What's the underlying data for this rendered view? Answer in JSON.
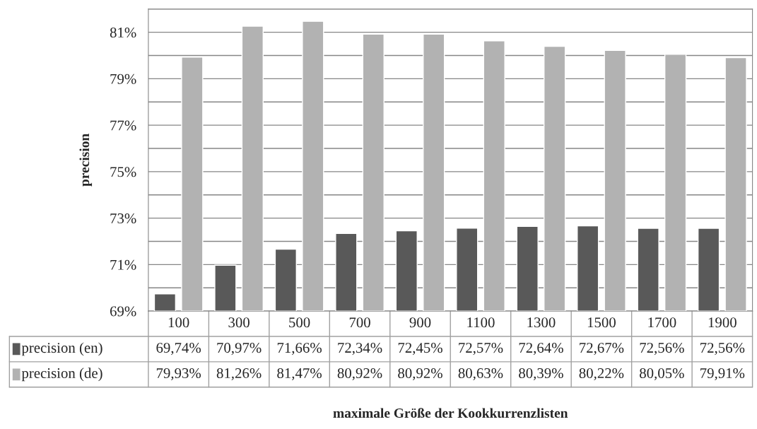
{
  "chart_data": {
    "type": "bar",
    "annotations": [
      "maximale Größe der Kookkurrenzlisten"
    ],
    "ylabel": "precision",
    "categories": [
      "100",
      "300",
      "500",
      "700",
      "900",
      "1100",
      "1300",
      "1500",
      "1700",
      "1900"
    ],
    "series": [
      {
        "name": "precision (en)",
        "color": "#595959",
        "values": [
          69.74,
          70.97,
          71.66,
          72.34,
          72.45,
          72.57,
          72.64,
          72.67,
          72.56,
          72.56
        ],
        "value_labels": [
          "69,74%",
          "70,97%",
          "71,66%",
          "72,34%",
          "72,45%",
          "72,57%",
          "72,64%",
          "72,67%",
          "72,56%",
          "72,56%"
        ]
      },
      {
        "name": "precision (de)",
        "color": "#b2b2b2",
        "values": [
          79.93,
          81.26,
          81.47,
          80.92,
          80.92,
          80.63,
          80.39,
          80.22,
          80.05,
          79.91
        ],
        "value_labels": [
          "79,93%",
          "81,26%",
          "81,47%",
          "80,92%",
          "80,92%",
          "80,63%",
          "80,39%",
          "80,22%",
          "80,05%",
          "79,91%"
        ]
      }
    ],
    "ylim": [
      69,
      82
    ],
    "yticks": [
      {
        "value": 69,
        "label": "69%"
      },
      {
        "value": 70,
        "label": null
      },
      {
        "value": 71,
        "label": "71%"
      },
      {
        "value": 72,
        "label": null
      },
      {
        "value": 73,
        "label": "73%"
      },
      {
        "value": 74,
        "label": null
      },
      {
        "value": 75,
        "label": "75%"
      },
      {
        "value": 76,
        "label": null
      },
      {
        "value": 77,
        "label": "77%"
      },
      {
        "value": 78,
        "label": null
      },
      {
        "value": 79,
        "label": "79%"
      },
      {
        "value": 80,
        "label": null
      },
      {
        "value": 81,
        "label": "81%"
      },
      {
        "value": 82,
        "label": null
      }
    ],
    "grid": "y",
    "legend": "bottom"
  }
}
